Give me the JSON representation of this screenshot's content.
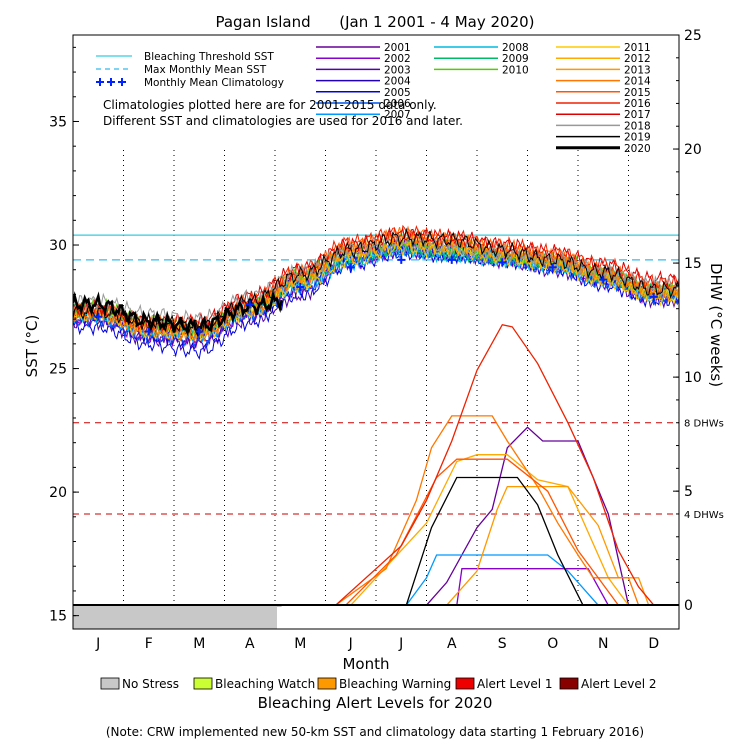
{
  "title": "Pagan Island      (Jan 1 2001 - 4 May 2020)",
  "x_label": "Month",
  "y_label_left": "SST (°C)",
  "y_label_right": "DHW (°C weeks)",
  "bottom_title": "Bleaching Alert Levels for 2020",
  "note": "(Note: CRW implemented new 50-km SST and climatology data starting 1 February 2016)",
  "climatology_note": [
    "Climatologies plotted here are for 2001-2015 data only.",
    "Different SST and climatologies are used for 2016 and later."
  ],
  "threshold_legend": [
    {
      "label": "Bleaching Threshold SST",
      "color": "#33ccdd",
      "style": "solid"
    },
    {
      "label": "Max Monthly Mean SST",
      "color": "#33bbee",
      "style": "dashed"
    },
    {
      "label": "Monthly Mean Climatology",
      "color": "#0022ff",
      "style": "plus"
    }
  ],
  "dhw_reference_labels": [
    "8 DHWs",
    "4 DHWs"
  ],
  "alert_levels": [
    {
      "label": "No Stress",
      "color": "#c8c8c8"
    },
    {
      "label": "Bleaching Watch",
      "color": "#ccff33"
    },
    {
      "label": "Bleaching Warning",
      "color": "#ff9900"
    },
    {
      "label": "Alert Level 1",
      "color": "#ee0000"
    },
    {
      "label": "Alert Level 2",
      "color": "#880000"
    }
  ],
  "chart_data": {
    "type": "line",
    "x_axis": {
      "label": "Month",
      "ticks": [
        "J",
        "F",
        "M",
        "A",
        "M",
        "J",
        "J",
        "A",
        "S",
        "O",
        "N",
        "D"
      ]
    },
    "y_axis_left": {
      "label": "SST (°C)",
      "range": [
        14.5,
        38.5
      ],
      "ticks": [
        15,
        20,
        25,
        30,
        35
      ]
    },
    "y_axis_right": {
      "label": "DHW (°C weeks)",
      "range": [
        -1,
        25
      ],
      "ticks": [
        0,
        5,
        10,
        15,
        20,
        25
      ]
    },
    "bleaching_threshold_sst": 30.4,
    "max_monthly_mean_sst": 29.4,
    "dhw_reference_lines": [
      8,
      4
    ],
    "monthly_mean_climatology": [
      27.1,
      26.5,
      26.5,
      27.6,
      28.3,
      29.1,
      29.4,
      29.4,
      29.3,
      29.1,
      28.6,
      27.9
    ],
    "series": [
      {
        "name": "2001",
        "color": "#660099",
        "sst_months": [
          27.2,
          26.4,
          26.3,
          27.4,
          28.6,
          29.6,
          29.9,
          29.7,
          29.6,
          29.3,
          28.7,
          28.0
        ],
        "dhw": [
          [
            0,
            0
          ],
          [
            7.0,
            0
          ],
          [
            7.4,
            1
          ],
          [
            8.0,
            3.4
          ],
          [
            8.3,
            4.2
          ],
          [
            8.6,
            6.9
          ],
          [
            9.0,
            7.8
          ],
          [
            9.3,
            7.2
          ],
          [
            10.0,
            7.2
          ],
          [
            10.6,
            4
          ],
          [
            11.0,
            0
          ],
          [
            12.0,
            0
          ]
        ]
      },
      {
        "name": "2002",
        "color": "#8800cc",
        "sst_months": [
          27.0,
          26.3,
          26.2,
          27.2,
          28.2,
          29.3,
          29.9,
          29.8,
          29.5,
          29.2,
          28.6,
          27.9
        ],
        "dhw": [
          [
            0,
            0
          ],
          [
            7.6,
            0
          ],
          [
            7.7,
            1.6
          ],
          [
            9.6,
            1.6
          ],
          [
            10.2,
            1.6
          ],
          [
            10.6,
            0
          ],
          [
            12.0,
            0
          ]
        ]
      },
      {
        "name": "2003",
        "color": "#5500aa",
        "sst_months": [
          26.9,
          26.2,
          26.0,
          27.0,
          28.0,
          29.5,
          29.8,
          29.7,
          29.4,
          29.0,
          28.5,
          27.8
        ],
        "dhw": [
          [
            0,
            0
          ],
          [
            12.0,
            0
          ]
        ]
      },
      {
        "name": "2004",
        "color": "#2200bb",
        "sst_months": [
          27.1,
          26.4,
          26.4,
          27.5,
          28.5,
          29.5,
          29.9,
          29.6,
          29.4,
          29.2,
          28.7,
          28.0
        ],
        "dhw": [
          [
            0,
            0
          ],
          [
            12.0,
            0
          ]
        ]
      },
      {
        "name": "2005",
        "color": "#0000dd",
        "sst_months": [
          26.7,
          26.0,
          25.7,
          26.9,
          28.0,
          29.2,
          29.7,
          29.6,
          29.4,
          29.1,
          28.4,
          27.8
        ],
        "dhw": [
          [
            0,
            0
          ],
          [
            12.0,
            0
          ]
        ]
      },
      {
        "name": "2006",
        "color": "#0055ee",
        "sst_months": [
          27.0,
          26.3,
          26.2,
          27.2,
          28.3,
          29.4,
          29.8,
          29.6,
          29.5,
          29.1,
          28.5,
          27.9
        ],
        "dhw": [
          [
            0,
            0
          ],
          [
            12.0,
            0
          ]
        ]
      },
      {
        "name": "2007",
        "color": "#0099ff",
        "sst_months": [
          27.1,
          26.5,
          26.4,
          27.3,
          28.4,
          29.4,
          29.9,
          29.7,
          29.5,
          29.2,
          28.6,
          28.0
        ],
        "dhw": [
          [
            0,
            0
          ],
          [
            6.6,
            0
          ],
          [
            7.0,
            1.2
          ],
          [
            7.2,
            2.2
          ],
          [
            9.4,
            2.2
          ],
          [
            9.8,
            1.5
          ],
          [
            10.4,
            0
          ],
          [
            12.0,
            0
          ]
        ]
      },
      {
        "name": "2008",
        "color": "#00bbdd",
        "sst_months": [
          27.2,
          26.6,
          26.5,
          27.4,
          28.4,
          29.3,
          29.8,
          29.6,
          29.4,
          29.2,
          28.7,
          28.1
        ],
        "dhw": [
          [
            0,
            0
          ],
          [
            12.0,
            0
          ]
        ]
      },
      {
        "name": "2009",
        "color": "#00bb66",
        "sst_months": [
          27.3,
          26.7,
          26.6,
          27.6,
          28.6,
          29.5,
          29.9,
          29.7,
          29.5,
          29.3,
          28.8,
          28.1
        ],
        "dhw": [
          [
            0,
            0
          ],
          [
            12.0,
            0
          ]
        ]
      },
      {
        "name": "2010",
        "color": "#55cc00",
        "sst_months": [
          27.5,
          26.9,
          26.6,
          27.5,
          28.8,
          29.8,
          30.2,
          29.9,
          29.6,
          29.4,
          28.9,
          28.2
        ],
        "dhw": [
          [
            0,
            0
          ],
          [
            12.0,
            0
          ]
        ]
      },
      {
        "name": "2011",
        "color": "#ffcc00",
        "sst_months": [
          27.2,
          26.5,
          26.4,
          27.3,
          28.4,
          29.4,
          29.9,
          29.8,
          29.5,
          29.2,
          28.6,
          27.9
        ],
        "dhw": [
          [
            0,
            0
          ],
          [
            12.0,
            0
          ]
        ]
      },
      {
        "name": "2012",
        "color": "#ffaa00",
        "sst_months": [
          27.3,
          26.7,
          26.6,
          27.6,
          28.6,
          29.7,
          30.1,
          29.9,
          29.6,
          29.3,
          28.7,
          28.0
        ],
        "dhw": [
          [
            0,
            0
          ],
          [
            5.5,
            0
          ],
          [
            7.0,
            3.6
          ],
          [
            7.6,
            6.3
          ],
          [
            8.0,
            6.6
          ],
          [
            8.6,
            6.6
          ],
          [
            9.2,
            5.5
          ],
          [
            9.8,
            5.2
          ],
          [
            10.6,
            1.2
          ],
          [
            11.0,
            0
          ],
          [
            12.0,
            0
          ]
        ]
      },
      {
        "name": "2013",
        "color": "#ff9900",
        "sst_months": [
          27.3,
          26.6,
          26.5,
          27.5,
          28.7,
          29.8,
          30.2,
          30.0,
          29.8,
          29.4,
          28.8,
          28.1
        ],
        "dhw": [
          [
            0,
            0
          ],
          [
            7.4,
            0
          ],
          [
            8.0,
            1.5
          ],
          [
            8.4,
            4.2
          ],
          [
            8.6,
            5.2
          ],
          [
            9.8,
            5.2
          ],
          [
            10.4,
            3.5
          ],
          [
            10.8,
            1.2
          ],
          [
            11.2,
            1.2
          ],
          [
            11.4,
            0
          ],
          [
            12.0,
            0
          ]
        ]
      },
      {
        "name": "2014",
        "color": "#ff7700",
        "sst_months": [
          27.2,
          26.6,
          26.4,
          27.4,
          28.7,
          29.9,
          30.4,
          30.2,
          29.8,
          29.5,
          28.9,
          28.2
        ],
        "dhw": [
          [
            0,
            0
          ],
          [
            5.2,
            0
          ],
          [
            6.2,
            1.6
          ],
          [
            6.8,
            4.6
          ],
          [
            7.1,
            6.9
          ],
          [
            7.5,
            8.3
          ],
          [
            8.3,
            8.3
          ],
          [
            8.6,
            7.2
          ],
          [
            9.2,
            5.2
          ],
          [
            9.6,
            3.6
          ],
          [
            10.0,
            2.2
          ],
          [
            10.3,
            1.2
          ],
          [
            11.0,
            1.2
          ],
          [
            11.2,
            0
          ],
          [
            12.0,
            0
          ]
        ]
      },
      {
        "name": "2015",
        "color": "#ff5500",
        "sst_months": [
          27.4,
          26.8,
          26.7,
          27.7,
          28.9,
          30.0,
          30.4,
          30.2,
          29.9,
          29.6,
          29.0,
          28.3
        ],
        "dhw": [
          [
            0,
            0
          ],
          [
            5.4,
            0
          ],
          [
            6.4,
            2.2
          ],
          [
            7.2,
            5.6
          ],
          [
            7.6,
            6.4
          ],
          [
            8.6,
            6.4
          ],
          [
            9.4,
            5.0
          ],
          [
            10.0,
            2.4
          ],
          [
            10.4,
            1.2
          ],
          [
            10.8,
            0
          ],
          [
            12.0,
            0
          ]
        ]
      },
      {
        "name": "2016",
        "color": "#ee2200",
        "sst_months": [
          27.4,
          26.8,
          26.8,
          27.8,
          29.0,
          30.1,
          30.5,
          30.3,
          30.0,
          29.7,
          29.2,
          28.5
        ],
        "dhw": [
          [
            0,
            0
          ],
          [
            5.2,
            0
          ],
          [
            6.5,
            2.6
          ],
          [
            7.0,
            4.6
          ],
          [
            7.5,
            7.2
          ],
          [
            8.0,
            10.3
          ],
          [
            8.5,
            12.3
          ],
          [
            8.7,
            12.2
          ],
          [
            9.2,
            10.6
          ],
          [
            9.8,
            8.0
          ],
          [
            10.3,
            5.6
          ],
          [
            10.8,
            2.4
          ],
          [
            11.2,
            0.8
          ],
          [
            11.5,
            0
          ],
          [
            12.0,
            0
          ]
        ]
      },
      {
        "name": "2017",
        "color": "#dd0000",
        "sst_months": [
          27.5,
          26.9,
          26.9,
          27.9,
          29.0,
          30.0,
          30.4,
          30.3,
          30.0,
          29.7,
          29.2,
          28.6
        ],
        "dhw": [
          [
            0,
            0
          ],
          [
            12.0,
            0
          ]
        ]
      },
      {
        "name": "2018",
        "color": "#999999",
        "sst_months": [
          27.7,
          27.2,
          27.0,
          27.9,
          28.9,
          29.8,
          30.1,
          29.9,
          29.7,
          29.4,
          28.9,
          28.4
        ],
        "dhw": [
          [
            0,
            0
          ],
          [
            12.0,
            0
          ]
        ]
      },
      {
        "name": "2019",
        "color": "#000000",
        "sst_months": [
          27.3,
          26.9,
          26.7,
          27.7,
          28.8,
          29.8,
          30.3,
          30.2,
          29.8,
          29.4,
          28.9,
          28.2
        ],
        "dhw": [
          [
            0,
            0
          ],
          [
            6.0,
            0
          ],
          [
            6.6,
            0
          ],
          [
            7.1,
            3.4
          ],
          [
            7.6,
            5.6
          ],
          [
            8.8,
            5.6
          ],
          [
            9.2,
            4.4
          ],
          [
            9.6,
            2.2
          ],
          [
            10.1,
            0
          ],
          [
            12.0,
            0
          ]
        ]
      },
      {
        "name": "2020",
        "color": "#000000",
        "bold": true,
        "sst_months": [
          27.6,
          26.9,
          26.7,
          27.5,
          27.9
        ],
        "sst_end_month": 4.13,
        "dhw": [
          [
            0,
            0
          ],
          [
            4.13,
            0
          ]
        ]
      }
    ],
    "legend_location": "top",
    "grid": "vertical dotted lines at month boundaries"
  }
}
